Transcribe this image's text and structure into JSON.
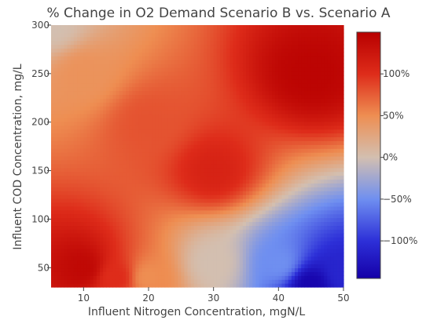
{
  "chart_data": {
    "type": "heatmap",
    "title": "% Change in O2 Demand Scenario B vs. Scenario A",
    "xlabel": "Influent Nitrogen Concentration, mgN/L",
    "ylabel": "Influent COD Concentration, mg/L",
    "xlim": [
      5,
      50
    ],
    "ylim": [
      30,
      300
    ],
    "x_ticks": [
      10,
      20,
      30,
      40,
      50
    ],
    "y_ticks": [
      50,
      100,
      150,
      200,
      250,
      300
    ],
    "x_tick_labels": [
      "10",
      "20",
      "30",
      "40",
      "50"
    ],
    "y_tick_labels": [
      "50",
      "100",
      "150",
      "200",
      "250",
      "300"
    ],
    "colorscale": {
      "range": [
        -145,
        150
      ],
      "stops": [
        {
          "value": -145,
          "color": "#1500a8"
        },
        {
          "value": -100,
          "color": "#2d30d8"
        },
        {
          "value": -50,
          "color": "#6f8ff0"
        },
        {
          "value": 0,
          "color": "#d3bfb0"
        },
        {
          "value": 50,
          "color": "#ee8e52"
        },
        {
          "value": 100,
          "color": "#de2c1a"
        },
        {
          "value": 150,
          "color": "#b80000"
        }
      ],
      "ticks": [
        -100,
        -50,
        0,
        50,
        100
      ],
      "tick_labels": [
        "−100%",
        "−50%",
        "0%",
        "50%",
        "100%"
      ]
    },
    "regions": [
      {
        "x": 5,
        "y": 300,
        "value": 0
      },
      {
        "x": 10,
        "y": 250,
        "value": 45
      },
      {
        "x": 20,
        "y": 200,
        "value": 80
      },
      {
        "x": 30,
        "y": 150,
        "value": 110
      },
      {
        "x": 45,
        "y": 250,
        "value": 145
      },
      {
        "x": 10,
        "y": 50,
        "value": 140
      },
      {
        "x": 15,
        "y": 40,
        "value": 100
      },
      {
        "x": 20,
        "y": 40,
        "value": 50
      },
      {
        "x": 30,
        "y": 55,
        "value": 0
      },
      {
        "x": 40,
        "y": 55,
        "value": -50
      },
      {
        "x": 50,
        "y": 45,
        "value": -110
      },
      {
        "x": 45,
        "y": 32,
        "value": -140
      }
    ]
  }
}
